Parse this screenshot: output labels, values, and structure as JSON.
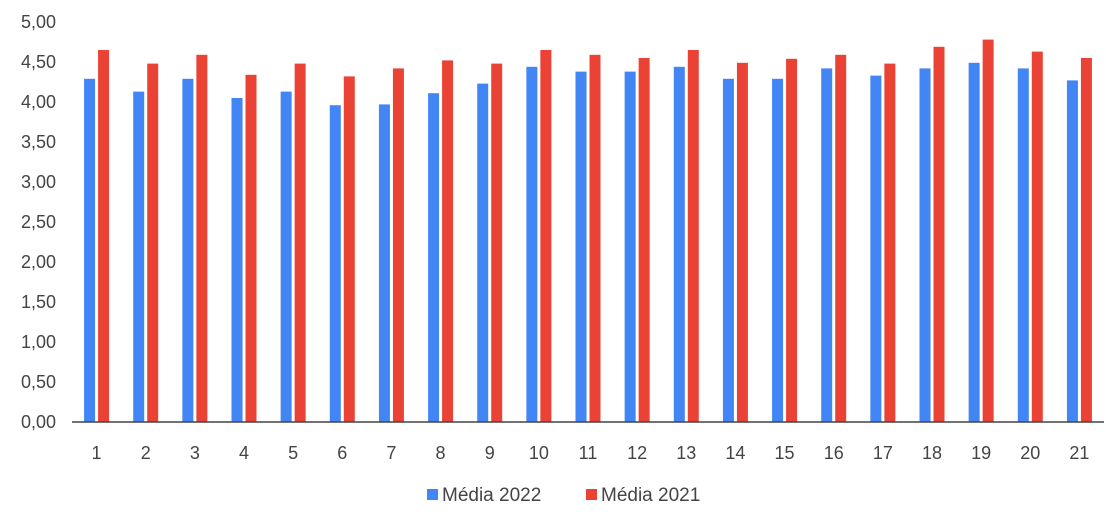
{
  "chart_data": {
    "type": "bar",
    "categories": [
      "1",
      "2",
      "3",
      "4",
      "5",
      "6",
      "7",
      "8",
      "9",
      "10",
      "11",
      "12",
      "13",
      "14",
      "15",
      "16",
      "17",
      "18",
      "19",
      "20",
      "21"
    ],
    "series": [
      {
        "name": "Média 2022",
        "color": "#4285F4",
        "values": [
          4.29,
          4.13,
          4.29,
          4.05,
          4.13,
          3.96,
          3.97,
          4.11,
          4.23,
          4.44,
          4.38,
          4.38,
          4.44,
          4.29,
          4.29,
          4.42,
          4.33,
          4.42,
          4.49,
          4.42,
          4.27
        ]
      },
      {
        "name": "Média 2021",
        "color": "#EA4335",
        "values": [
          4.65,
          4.48,
          4.59,
          4.34,
          4.48,
          4.32,
          4.42,
          4.52,
          4.48,
          4.65,
          4.59,
          4.55,
          4.65,
          4.49,
          4.54,
          4.59,
          4.48,
          4.69,
          4.78,
          4.63,
          4.55
        ]
      }
    ],
    "y_ticks": [
      "0,00",
      "0,50",
      "1,00",
      "1,50",
      "2,00",
      "2,50",
      "3,00",
      "3,50",
      "4,00",
      "4,50",
      "5,00"
    ],
    "ylim": [
      0,
      5
    ],
    "grid": false,
    "legend_position": "bottom-center",
    "title": "",
    "xlabel": "",
    "ylabel": ""
  }
}
